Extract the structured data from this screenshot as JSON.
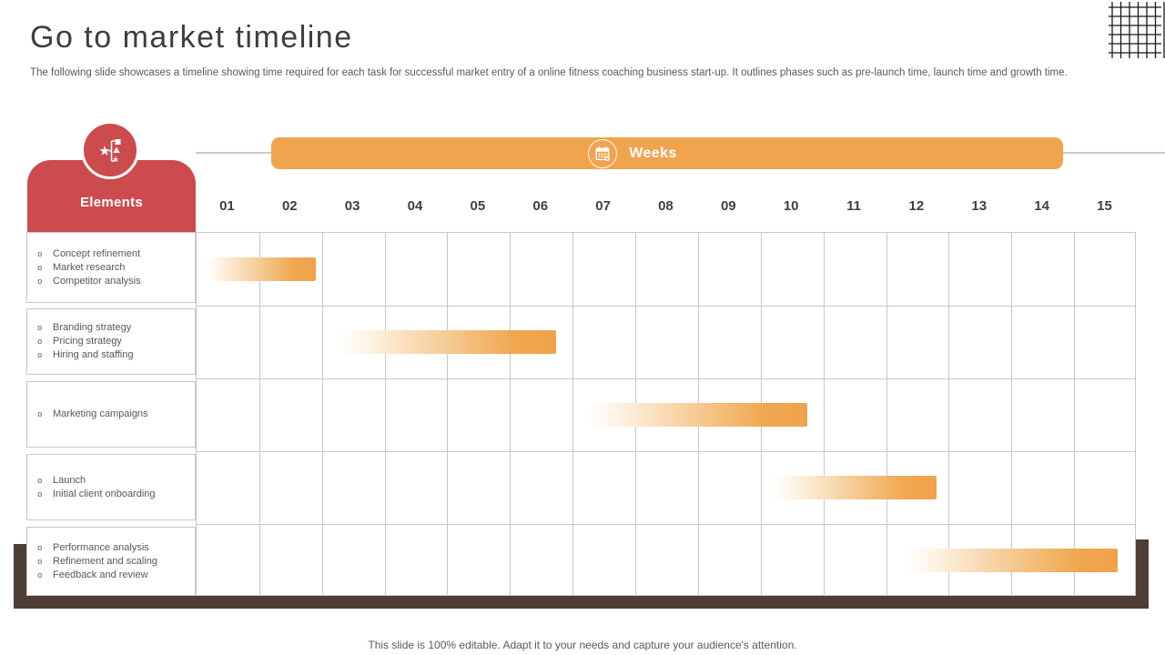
{
  "slide": {
    "title": "Go to market timeline",
    "subtitle": "The following slide showcases a timeline showing time required for each task for successful market entry of a online fitness coaching business start-up. It outlines phases such as pre-launch time, launch time and growth time.",
    "footer": "This slide is 100% editable. Adapt it to your needs and capture your audience's attention."
  },
  "timeline": {
    "elements_label": "Elements",
    "weeks_label": "Weeks",
    "bullet_glyph": "o"
  },
  "icons": {
    "elements_badge": "shapes-star-icon",
    "weeks_badge": "calendar-icon",
    "corner_decoration": "crosshatch-grid"
  },
  "colors": {
    "accent_red": "#cc4b4d",
    "accent_orange": "#f0a44e",
    "bar_gradient_end": "#efa24b",
    "frame_brown": "#4f3e35",
    "grid_line": "#c7c7c7",
    "text_dark": "#404040",
    "text_gray": "#595959"
  },
  "chart_data": {
    "type": "bar",
    "subtype": "gantt",
    "title": "Go to market timeline",
    "xlabel": "Weeks",
    "x_ticks": [
      "01",
      "02",
      "03",
      "04",
      "05",
      "06",
      "07",
      "08",
      "09",
      "10",
      "11",
      "12",
      "13",
      "14",
      "15"
    ],
    "xlim": [
      0,
      15
    ],
    "grid": true,
    "rows": [
      {
        "tasks": [
          "Concept refinement",
          "Market research",
          "Competitor analysis"
        ],
        "start_week": 0.15,
        "end_week": 1.9
      },
      {
        "tasks": [
          "Branding strategy",
          "Pricing strategy",
          "Hiring and staffing"
        ],
        "start_week": 2.3,
        "end_week": 5.73
      },
      {
        "tasks": [
          "Marketing campaigns"
        ],
        "start_week": 6.27,
        "end_week": 9.74
      },
      {
        "tasks": [
          "Launch",
          "Initial client onboarding"
        ],
        "start_week": 9.22,
        "end_week": 11.8
      },
      {
        "tasks": [
          "Performance analysis",
          "Refinement and scaling",
          "Feedback and review"
        ],
        "start_week": 11.32,
        "end_week": 14.7
      }
    ]
  }
}
